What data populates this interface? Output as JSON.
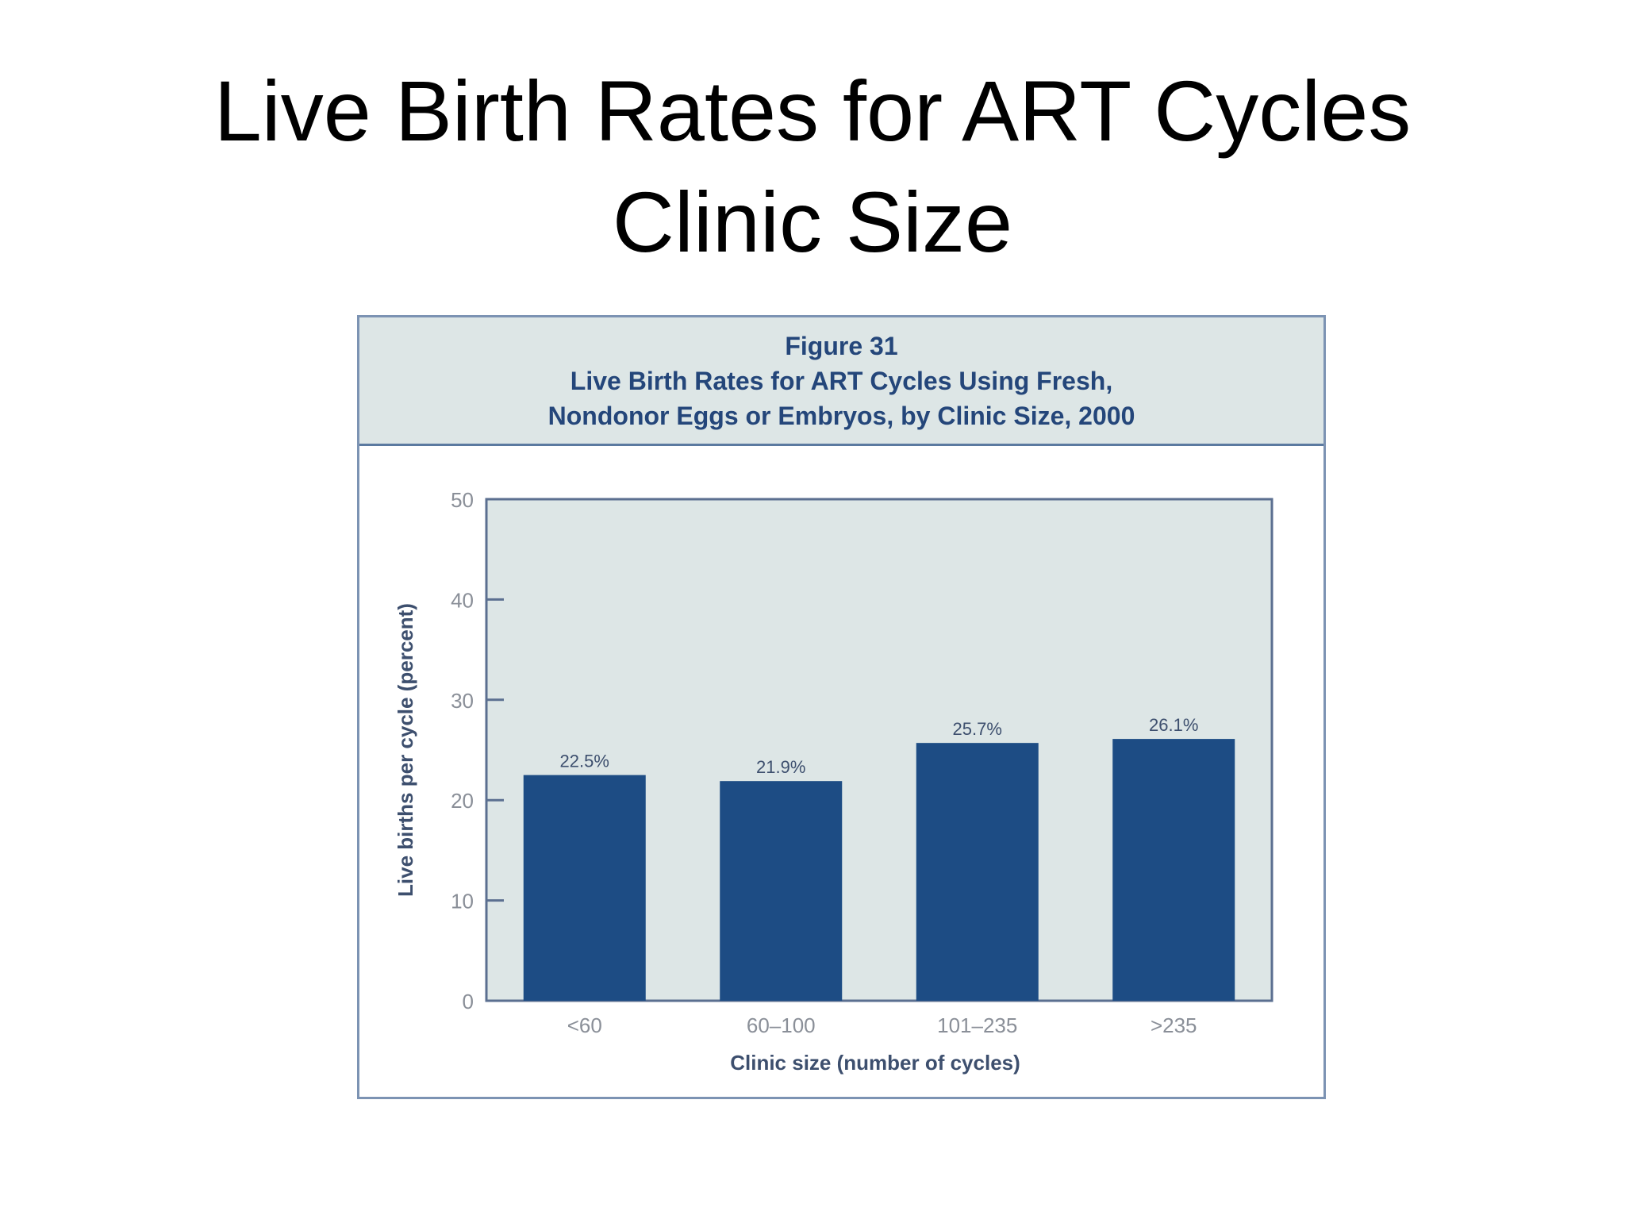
{
  "slide": {
    "title_line1": "Live Birth Rates for ART Cycles",
    "title_line2": "Clinic Size"
  },
  "figure": {
    "label": "Figure 31",
    "title_line1": "Live Birth Rates for ART Cycles Using Fresh,",
    "title_line2": "Nondonor Eggs or Embryos, by Clinic Size, 2000"
  },
  "colors": {
    "bar": "#1d4c84",
    "plot_background": "#dde6e6",
    "header_background": "#dde6e6",
    "header_text": "#24467a",
    "axis": "#5b6f90"
  },
  "chart_data": {
    "type": "bar",
    "categories": [
      "<60",
      "60–100",
      "101–235",
      ">235"
    ],
    "values": [
      22.5,
      21.9,
      25.7,
      26.1
    ],
    "data_labels": [
      "22.5%",
      "21.9%",
      "25.7%",
      "26.1%"
    ],
    "title": "Live Birth Rates for ART Cycles Using Fresh, Nondonor Eggs or Embryos, by Clinic Size, 2000",
    "xlabel": "Clinic size (number of cycles)",
    "ylabel": "Live births per cycle (percent)",
    "ylim": [
      0,
      50
    ],
    "yticks": [
      0,
      10,
      20,
      30,
      40,
      50
    ],
    "grid": false,
    "legend": "none"
  }
}
